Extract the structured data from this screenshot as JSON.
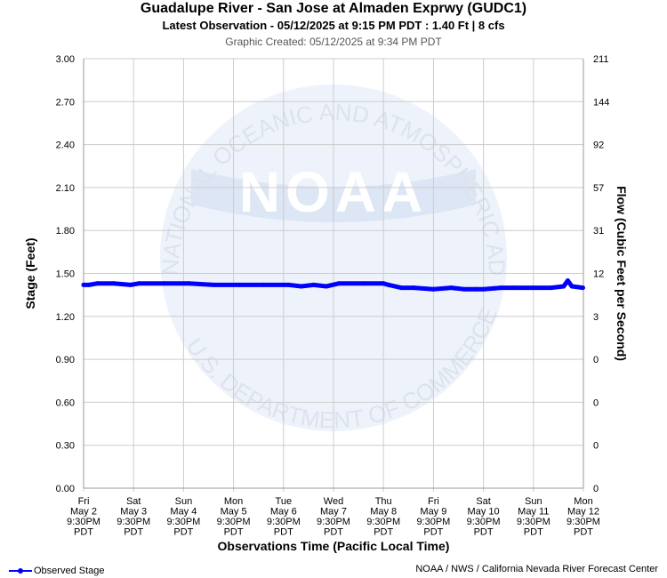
{
  "header": {
    "title": "Guadalupe River - San Jose at Almaden Exprwy (GUDC1)",
    "subtitle": "Latest Observation - 05/12/2025 at 9:15 PM PDT : 1.40 Ft | 8 cfs",
    "created": "Graphic Created: 05/12/2025 at 9:34 PM PDT"
  },
  "watermark": {
    "text": "NOAA",
    "ring_text": "NATIONAL OCEANIC AND ATMOSPHERIC ADMINISTRATION",
    "ring_text_bottom": "U.S. DEPARTMENT OF COMMERCE"
  },
  "legend": {
    "label": "Observed Stage"
  },
  "footer": {
    "credit": "NOAA / NWS / California Nevada River Forecast Center"
  },
  "colors": {
    "series": "#0000ff",
    "grid": "#cccccc",
    "watermark": "#e8eef8"
  },
  "chart_data": {
    "type": "line",
    "title": "Guadalupe River - San Jose at Almaden Exprwy (GUDC1)",
    "xlabel": "Observations Time (Pacific Local Time)",
    "ylabel": "Stage (Feet)",
    "y2label": "Flow (Cubic Feet per Second)",
    "ylim": [
      0,
      3.0
    ],
    "yticks": [
      "0.00",
      "0.30",
      "0.60",
      "0.90",
      "1.20",
      "1.50",
      "1.80",
      "2.10",
      "2.40",
      "2.70",
      "3.00"
    ],
    "y2ticks": [
      "0",
      "0",
      "0",
      "0",
      "3",
      "12",
      "31",
      "57",
      "92",
      "144",
      "211"
    ],
    "xlim": [
      "2025-05-02 21:30",
      "2025-05-12 21:30"
    ],
    "xticks": [
      {
        "day": "Fri",
        "date": "May 2",
        "time": "9:30PM",
        "tz": "PDT"
      },
      {
        "day": "Sat",
        "date": "May 3",
        "time": "9:30PM",
        "tz": "PDT"
      },
      {
        "day": "Sun",
        "date": "May 4",
        "time": "9:30PM",
        "tz": "PDT"
      },
      {
        "day": "Mon",
        "date": "May 5",
        "time": "9:30PM",
        "tz": "PDT"
      },
      {
        "day": "Tue",
        "date": "May 6",
        "time": "9:30PM",
        "tz": "PDT"
      },
      {
        "day": "Wed",
        "date": "May 7",
        "time": "9:30PM",
        "tz": "PDT"
      },
      {
        "day": "Thu",
        "date": "May 8",
        "time": "9:30PM",
        "tz": "PDT"
      },
      {
        "day": "Fri",
        "date": "May 9",
        "time": "9:30PM",
        "tz": "PDT"
      },
      {
        "day": "Sat",
        "date": "May 10",
        "time": "9:30PM",
        "tz": "PDT"
      },
      {
        "day": "Sun",
        "date": "May 11",
        "time": "9:30PM",
        "tz": "PDT"
      },
      {
        "day": "Mon",
        "date": "May 12",
        "time": "9:30PM",
        "tz": "PDT"
      }
    ],
    "grid": true,
    "series": [
      {
        "name": "Observed Stage",
        "points": [
          [
            "2025-05-02 21:30",
            1.42
          ],
          [
            "2025-05-03 00:00",
            1.42
          ],
          [
            "2025-05-03 04:00",
            1.43
          ],
          [
            "2025-05-03 12:00",
            1.43
          ],
          [
            "2025-05-03 20:00",
            1.42
          ],
          [
            "2025-05-04 00:00",
            1.43
          ],
          [
            "2025-05-04 12:00",
            1.43
          ],
          [
            "2025-05-05 00:00",
            1.43
          ],
          [
            "2025-05-05 12:00",
            1.42
          ],
          [
            "2025-05-06 00:00",
            1.42
          ],
          [
            "2025-05-06 12:00",
            1.42
          ],
          [
            "2025-05-07 00:00",
            1.42
          ],
          [
            "2025-05-07 06:00",
            1.41
          ],
          [
            "2025-05-07 12:00",
            1.42
          ],
          [
            "2025-05-07 18:00",
            1.41
          ],
          [
            "2025-05-08 00:00",
            1.43
          ],
          [
            "2025-05-08 12:00",
            1.43
          ],
          [
            "2025-05-08 21:30",
            1.43
          ],
          [
            "2025-05-09 00:00",
            1.42
          ],
          [
            "2025-05-09 06:00",
            1.4
          ],
          [
            "2025-05-09 12:00",
            1.4
          ],
          [
            "2025-05-09 21:30",
            1.39
          ],
          [
            "2025-05-10 06:00",
            1.4
          ],
          [
            "2025-05-10 12:00",
            1.39
          ],
          [
            "2025-05-10 18:00",
            1.39
          ],
          [
            "2025-05-10 21:30",
            1.39
          ],
          [
            "2025-05-11 06:00",
            1.4
          ],
          [
            "2025-05-11 12:00",
            1.4
          ],
          [
            "2025-05-11 21:30",
            1.4
          ],
          [
            "2025-05-12 06:00",
            1.4
          ],
          [
            "2025-05-12 12:00",
            1.41
          ],
          [
            "2025-05-12 14:00",
            1.45
          ],
          [
            "2025-05-12 16:00",
            1.41
          ],
          [
            "2025-05-12 21:15",
            1.4
          ]
        ]
      }
    ],
    "legend_position": "bottom-left"
  }
}
